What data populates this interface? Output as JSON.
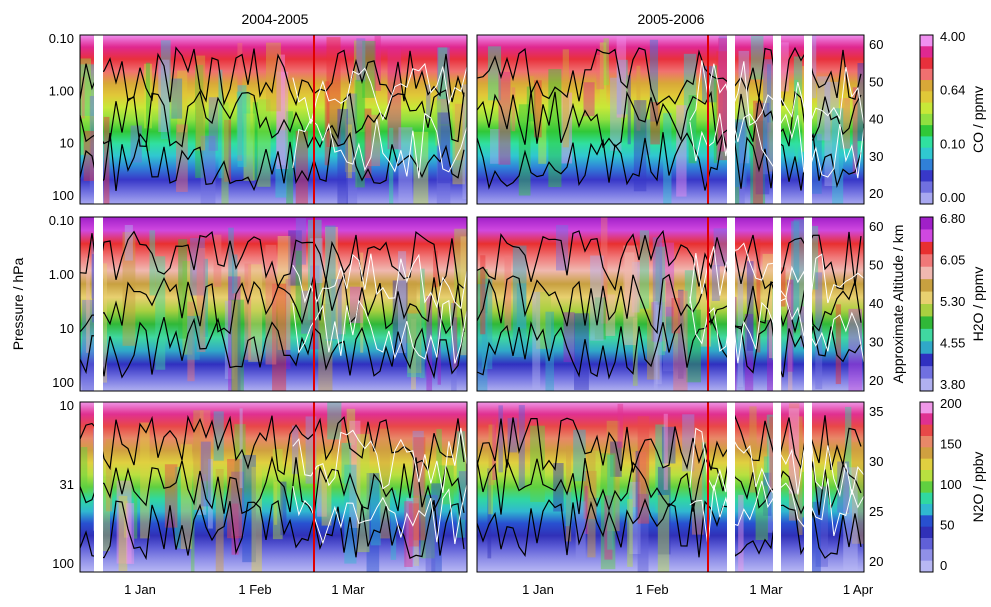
{
  "chart_data": {
    "type": "heatmap",
    "layout": "3 rows x 2 columns of time-pressure contour panels",
    "column_titles": [
      "2004-2005",
      "2005-2006"
    ],
    "ylabel_left": "Pressure / hPa",
    "ylabel_right": "Approximate Altitude / km",
    "x_tick_labels_left": [
      "1 Jan",
      "1 Feb",
      "1 Mar"
    ],
    "x_tick_labels_right": [
      "1 Jan",
      "1 Feb",
      "1 Mar",
      "1 Apr"
    ],
    "rows": [
      {
        "quantity": "CO",
        "colorbar_label": "CO / ppmv",
        "colorbar_ticks": [
          "4.00",
          "0.64",
          "0.10",
          "0.00"
        ],
        "pressure_ticks": [
          "0.10",
          "1.00",
          "10",
          "100"
        ],
        "pressure_range_hPa": [
          100,
          0.1
        ],
        "altitude_ticks": [
          "60",
          "50",
          "40",
          "30",
          "20"
        ],
        "colors": [
          "#f090f0",
          "#e02890",
          "#e8303c",
          "#f07070",
          "#d8a838",
          "#e0c838",
          "#c8e838",
          "#90e040",
          "#30c838",
          "#30e0a0",
          "#30c8d0",
          "#3080d8",
          "#3838c8",
          "#7070e0",
          "#a8a8f0"
        ]
      },
      {
        "quantity": "H2O",
        "colorbar_label": "H2O / ppmv",
        "colorbar_ticks": [
          "6.80",
          "6.05",
          "5.30",
          "4.55",
          "3.80"
        ],
        "pressure_ticks": [
          "0.10",
          "1.00",
          "10",
          "100"
        ],
        "pressure_range_hPa": [
          100,
          0.1
        ],
        "altitude_ticks": [
          "60",
          "50",
          "40",
          "30",
          "20"
        ],
        "colors": [
          "#a020c8",
          "#d048e0",
          "#e83030",
          "#f07878",
          "#f0b8b0",
          "#c8a040",
          "#e8d070",
          "#a8d040",
          "#30b838",
          "#40d8a0",
          "#30a8c8",
          "#3030c0",
          "#7070e0",
          "#b0b0f0"
        ]
      },
      {
        "quantity": "N2O",
        "colorbar_label": "N2O / ppbv",
        "colorbar_ticks": [
          "200",
          "150",
          "100",
          "50",
          "0"
        ],
        "pressure_ticks": [
          "10",
          "31",
          "100"
        ],
        "pressure_range_hPa": [
          100,
          4
        ],
        "altitude_ticks": [
          "35",
          "30",
          "25",
          "20"
        ],
        "colors": [
          "#f098e8",
          "#e03090",
          "#e84848",
          "#e88868",
          "#d0a040",
          "#e0d040",
          "#b8e040",
          "#60d040",
          "#30d8a0",
          "#30b8d0",
          "#2850d0",
          "#3030b8",
          "#6060d8",
          "#9090e8",
          "#b8b8f4"
        ]
      }
    ],
    "markers": {
      "red_vertical_line": "vortex split / event date marker",
      "black_contours": "overlaid contours",
      "white_contours": "overlaid contours"
    }
  }
}
